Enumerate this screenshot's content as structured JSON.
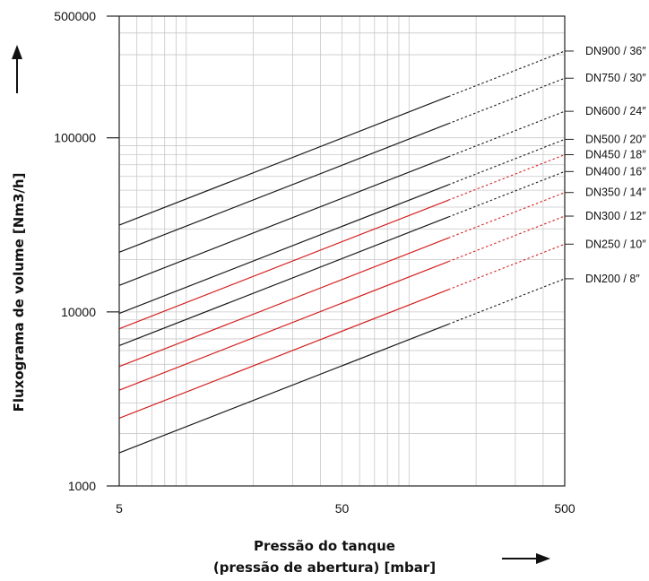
{
  "chart_data": {
    "type": "line",
    "title": "",
    "xlabel": [
      "Pressão do tanque",
      "(pressão de abertura)  [mbar]"
    ],
    "ylabel": "Fluxograma de volume  [Nm3/h]",
    "x_scale": "log",
    "y_scale": "log",
    "xlim": [
      5,
      500
    ],
    "ylim": [
      1000,
      500000
    ],
    "x_ticks": [
      5,
      50,
      500
    ],
    "x_tick_labels": [
      "5",
      "50",
      "500"
    ],
    "y_ticks": [
      1000,
      10000,
      100000,
      500000
    ],
    "y_tick_labels": [
      "1000",
      "10000",
      "100000",
      "500000"
    ],
    "grid": true,
    "legend": "labels at right end of each line",
    "solid_until_x": 150,
    "dashed_from_x": 150,
    "series": [
      {
        "name": "DN900 / 36″",
        "x": [
          5,
          150,
          500
        ],
        "y": [
          31500,
          172000,
          315000
        ],
        "color": "#1a1a1a"
      },
      {
        "name": "DN750 / 30″",
        "x": [
          5,
          150,
          500
        ],
        "y": [
          22000,
          120000,
          220000
        ],
        "color": "#1a1a1a"
      },
      {
        "name": "DN600 / 24″",
        "x": [
          5,
          150,
          500
        ],
        "y": [
          14200,
          77000,
          142000
        ],
        "color": "#1a1a1a"
      },
      {
        "name": "DN500 / 20″",
        "x": [
          5,
          150,
          500
        ],
        "y": [
          9800,
          53500,
          98000
        ],
        "color": "#1a1a1a"
      },
      {
        "name": "DN450 / 18″",
        "x": [
          5,
          150,
          500
        ],
        "y": [
          8000,
          43700,
          80000
        ],
        "color": "#d42020"
      },
      {
        "name": "DN400 / 16″",
        "x": [
          5,
          150,
          500
        ],
        "y": [
          6400,
          35000,
          64000
        ],
        "color": "#1a1a1a"
      },
      {
        "name": "DN350 / 14″",
        "x": [
          5,
          150,
          500
        ],
        "y": [
          4850,
          26500,
          48500
        ],
        "color": "#d42020"
      },
      {
        "name": "DN300 / 12″",
        "x": [
          5,
          150,
          500
        ],
        "y": [
          3550,
          19400,
          35500
        ],
        "color": "#d42020"
      },
      {
        "name": "DN250 / 10″",
        "x": [
          5,
          150,
          500
        ],
        "y": [
          2450,
          13400,
          24500
        ],
        "color": "#d42020"
      },
      {
        "name": "DN200 / 8″",
        "x": [
          5,
          150,
          500
        ],
        "y": [
          1550,
          8500,
          15500
        ],
        "color": "#1a1a1a"
      }
    ]
  },
  "colors": {
    "grid": "#c8c8c8",
    "axis": "#222222",
    "arrow": "#111111"
  },
  "icons": {
    "x_axis_arrow": "arrow-right-icon",
    "y_axis_arrow": "arrow-up-icon"
  }
}
